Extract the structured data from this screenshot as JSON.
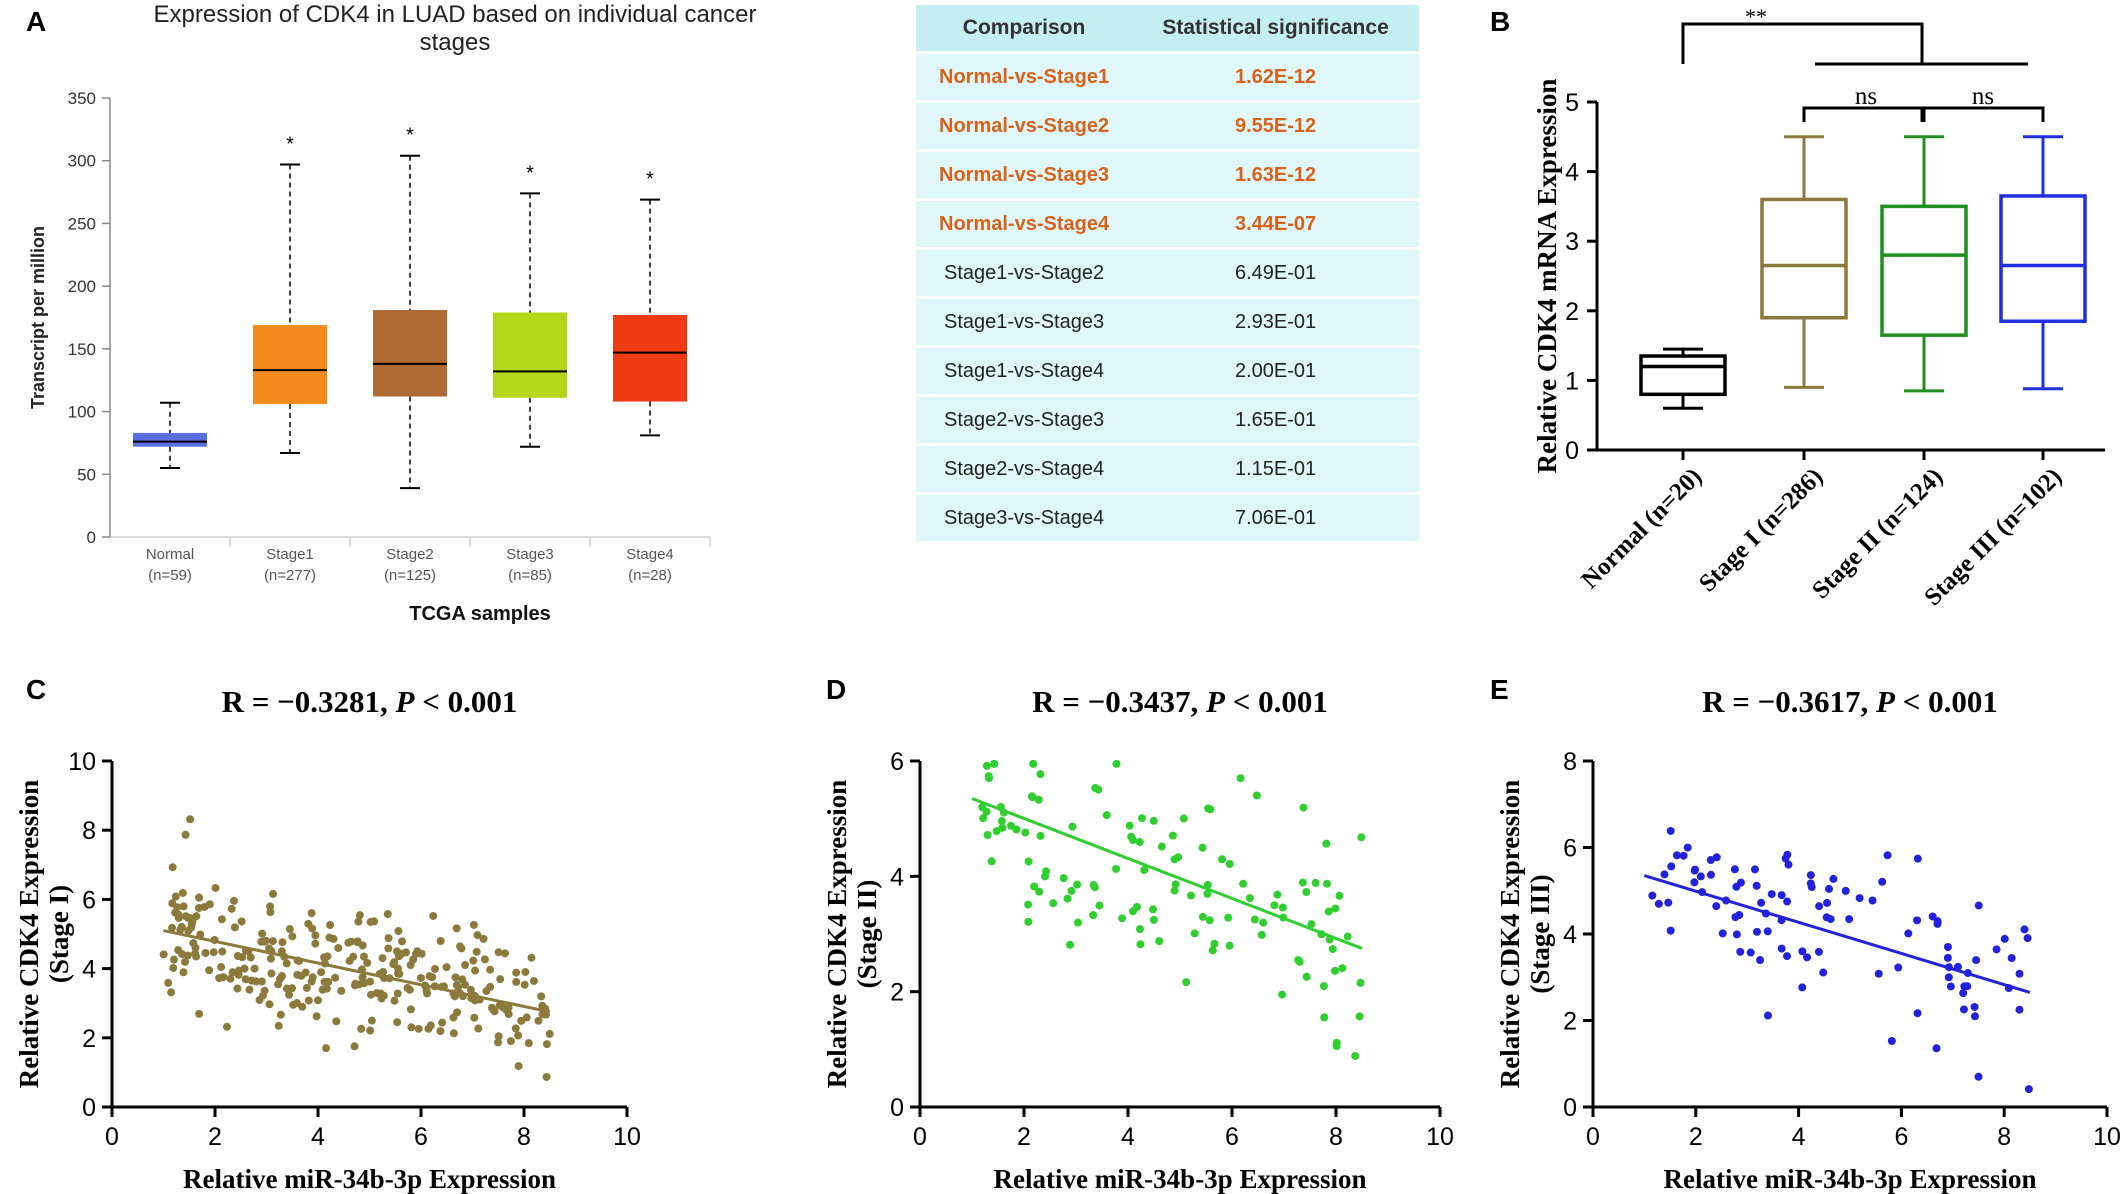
{
  "panels": {
    "A": "A",
    "B": "B",
    "C": "C",
    "D": "D",
    "E": "E"
  },
  "colors": {
    "normal_blue": "#5b6ee1",
    "stage1_orange": "#f28a1d",
    "stage2_brown": "#b06a34",
    "stage3_green": "#b5d519",
    "stage4_red": "#f03a14",
    "b_normal": "#000000",
    "b_stage1": "#8c7a3c",
    "b_stage2": "#1f8f1f",
    "b_stage3": "#1f2fe0",
    "c_points": "#8c7a3c",
    "d_points": "#2ecf2e",
    "e_points": "#2222dd",
    "table_sig": "#d9621a",
    "table_header_bg": "#c5eef2",
    "table_row_bg": "#e0f7f9"
  },
  "chart_data": [
    {
      "id": "A",
      "type": "box",
      "title": "Expression of CDK4 in LUAD based on individual cancer stages",
      "xlabel": "TCGA samples",
      "ylabel": "Transcript per million",
      "ylim": [
        0,
        350
      ],
      "yticks": [
        "0",
        "50",
        "100",
        "150",
        "200",
        "250",
        "300",
        "350"
      ],
      "categories": [
        "Normal",
        "Stage1",
        "Stage2",
        "Stage3",
        "Stage4"
      ],
      "counts": [
        "(n=59)",
        "(n=277)",
        "(n=125)",
        "(n=85)",
        "(n=28)"
      ],
      "significance": [
        "",
        "*",
        "*",
        "*",
        "*"
      ],
      "boxes": [
        {
          "min": 55,
          "q1": 72,
          "median": 76,
          "q3": 83,
          "max": 107
        },
        {
          "min": 67,
          "q1": 106,
          "median": 133,
          "q3": 169,
          "max": 297
        },
        {
          "min": 39,
          "q1": 112,
          "median": 138,
          "q3": 181,
          "max": 304
        },
        {
          "min": 72,
          "q1": 111,
          "median": 132,
          "q3": 179,
          "max": 274
        },
        {
          "min": 81,
          "q1": 108,
          "median": 147,
          "q3": 177,
          "max": 269
        }
      ]
    },
    {
      "id": "B",
      "type": "box",
      "ylabel": "Relative CDK4 mRNA Expression",
      "ylim": [
        0,
        5
      ],
      "yticks": [
        "0",
        "1",
        "2",
        "3",
        "4",
        "5"
      ],
      "categories": [
        "Normal (n=20)",
        "Stage I (n=286)",
        "Stage II (n=124)",
        "Stage III (n=102)"
      ],
      "boxes": [
        {
          "min": 0.6,
          "q1": 0.8,
          "median": 1.2,
          "q3": 1.35,
          "max": 1.45
        },
        {
          "min": 0.9,
          "q1": 1.9,
          "median": 2.65,
          "q3": 3.6,
          "max": 4.5
        },
        {
          "min": 0.85,
          "q1": 1.65,
          "median": 2.8,
          "q3": 3.5,
          "max": 4.5
        },
        {
          "min": 0.88,
          "q1": 1.85,
          "median": 2.65,
          "q3": 3.65,
          "max": 4.5
        }
      ],
      "annotations": {
        "top": "**",
        "ns1": "ns",
        "ns2": "ns"
      }
    },
    {
      "id": "C",
      "type": "scatter",
      "title_r": "R = −0.3281, ",
      "title_p": "P",
      "title_tail": " < 0.001",
      "xlabel": "Relative miR-34b-3p Expression",
      "ylabel_line1": "Relative CDK4 Expression",
      "ylabel_line2": "(Stage I)",
      "xlim": [
        0,
        10
      ],
      "ylim": [
        0,
        10
      ],
      "xticks": [
        "0",
        "2",
        "4",
        "6",
        "8",
        "10"
      ],
      "yticks": [
        "0",
        "2",
        "4",
        "6",
        "8",
        "10"
      ],
      "fit": {
        "x0": 1.0,
        "y0": 5.1,
        "x1": 8.5,
        "y1": 2.75
      },
      "n_points": 286
    },
    {
      "id": "D",
      "type": "scatter",
      "title_r": "R = −0.3437, ",
      "title_p": "P",
      "title_tail": " < 0.001",
      "xlabel": "Relative miR-34b-3p Expression",
      "ylabel_line1": "Relative CDK4 Expression",
      "ylabel_line2": "(Stage II)",
      "xlim": [
        0,
        10
      ],
      "ylim": [
        0,
        6
      ],
      "xticks": [
        "0",
        "2",
        "4",
        "6",
        "8",
        "10"
      ],
      "yticks": [
        "0",
        "2",
        "4",
        "6"
      ],
      "fit": {
        "x0": 1.0,
        "y0": 5.35,
        "x1": 8.5,
        "y1": 2.75
      },
      "n_points": 124
    },
    {
      "id": "E",
      "type": "scatter",
      "title_r": "R = −0.3617, ",
      "title_p": "P",
      "title_tail": " < 0.001",
      "xlabel": "Relative miR-34b-3p Expression",
      "ylabel_line1": "Relative CDK4 Expression",
      "ylabel_line2": "(Stage III)",
      "xlim": [
        0,
        10
      ],
      "ylim": [
        0,
        8
      ],
      "xticks": [
        "0",
        "2",
        "4",
        "6",
        "8",
        "10"
      ],
      "yticks": [
        "0",
        "2",
        "4",
        "6",
        "8"
      ],
      "fit": {
        "x0": 1.0,
        "y0": 5.35,
        "x1": 8.5,
        "y1": 2.65
      },
      "n_points": 102
    }
  ],
  "table": {
    "headers": [
      "Comparison",
      "Statistical significance"
    ],
    "rows": [
      {
        "comparison": "Normal-vs-Stage1",
        "p": "1.62E-12",
        "sig": true
      },
      {
        "comparison": "Normal-vs-Stage2",
        "p": "9.55E-12",
        "sig": true
      },
      {
        "comparison": "Normal-vs-Stage3",
        "p": "1.63E-12",
        "sig": true
      },
      {
        "comparison": "Normal-vs-Stage4",
        "p": "3.44E-07",
        "sig": true
      },
      {
        "comparison": "Stage1-vs-Stage2",
        "p": "6.49E-01",
        "sig": false
      },
      {
        "comparison": "Stage1-vs-Stage3",
        "p": "2.93E-01",
        "sig": false
      },
      {
        "comparison": "Stage1-vs-Stage4",
        "p": "2.00E-01",
        "sig": false
      },
      {
        "comparison": "Stage2-vs-Stage3",
        "p": "1.65E-01",
        "sig": false
      },
      {
        "comparison": "Stage2-vs-Stage4",
        "p": "1.15E-01",
        "sig": false
      },
      {
        "comparison": "Stage3-vs-Stage4",
        "p": "7.06E-01",
        "sig": false
      }
    ]
  }
}
